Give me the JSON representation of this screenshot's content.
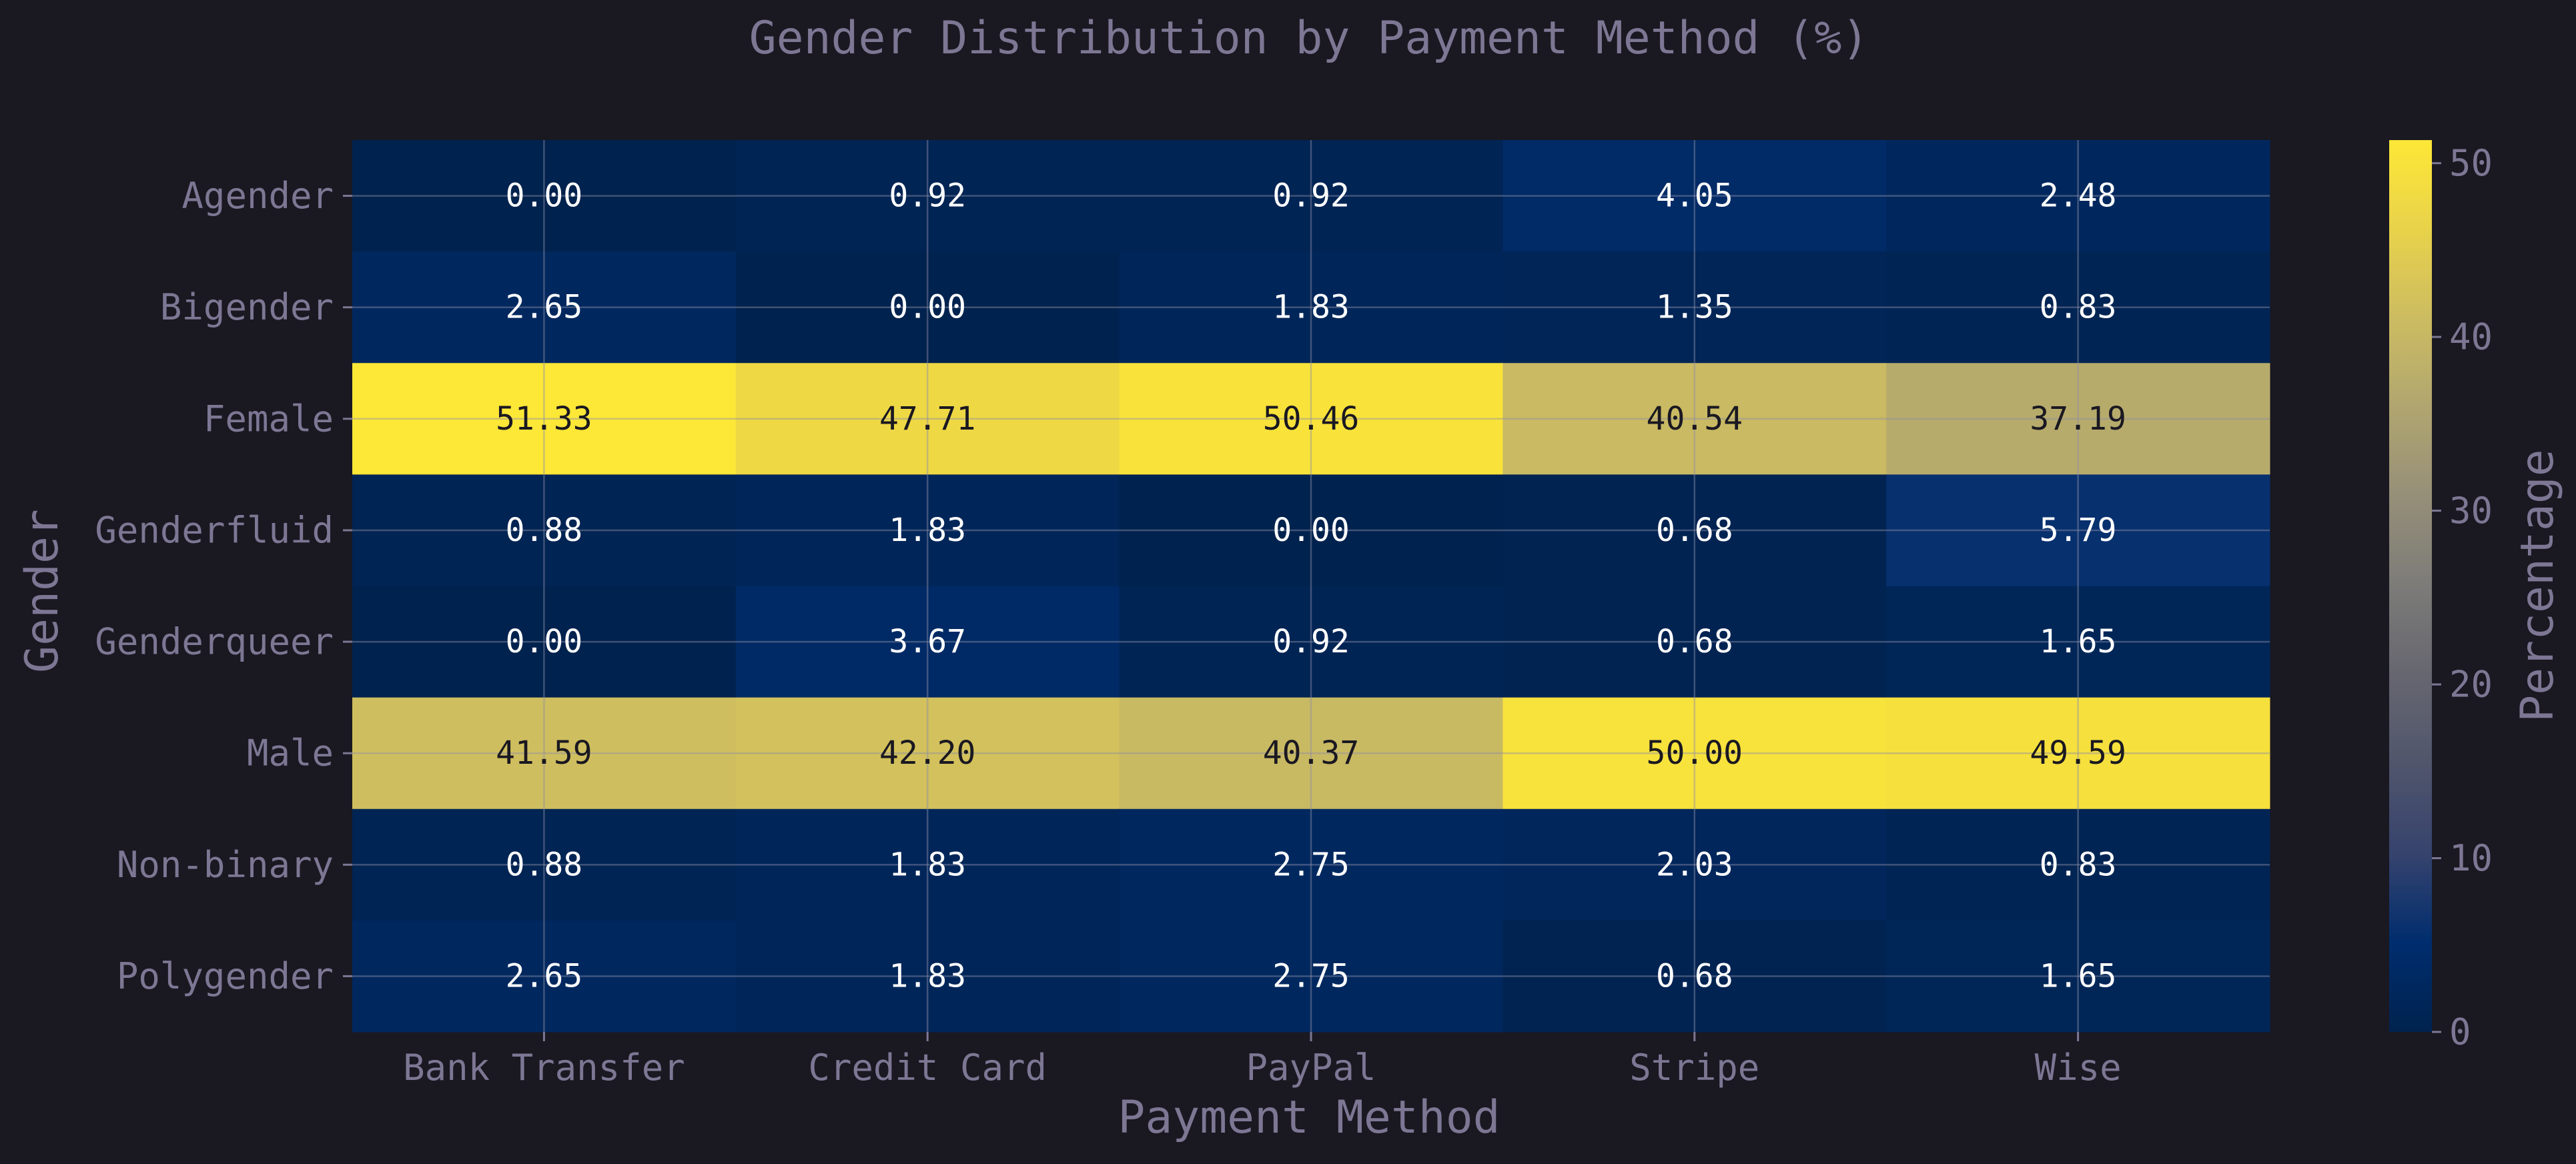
{
  "chart_data": {
    "type": "heatmap",
    "title": "Gender Distribution by Payment Method (%)",
    "xlabel": "Payment Method",
    "ylabel": "Gender",
    "x_categories": [
      "Bank Transfer",
      "Credit Card",
      "PayPal",
      "Stripe",
      "Wise"
    ],
    "y_categories": [
      "Agender",
      "Bigender",
      "Female",
      "Genderfluid",
      "Genderqueer",
      "Male",
      "Non-binary",
      "Polygender"
    ],
    "values": [
      [
        0.0,
        0.92,
        0.92,
        4.05,
        2.48
      ],
      [
        2.65,
        0.0,
        1.83,
        1.35,
        0.83
      ],
      [
        51.33,
        47.71,
        50.46,
        40.54,
        37.19
      ],
      [
        0.88,
        1.83,
        0.0,
        0.68,
        5.79
      ],
      [
        0.0,
        3.67,
        0.92,
        0.68,
        1.65
      ],
      [
        41.59,
        42.2,
        40.37,
        50.0,
        49.59
      ],
      [
        0.88,
        1.83,
        2.75,
        2.03,
        0.83
      ],
      [
        2.65,
        1.83,
        2.75,
        0.68,
        1.65
      ]
    ],
    "value_labels": [
      [
        "0.00",
        "0.92",
        "0.92",
        "4.05",
        "2.48"
      ],
      [
        "2.65",
        "0.00",
        "1.83",
        "1.35",
        "0.83"
      ],
      [
        "51.33",
        "47.71",
        "50.46",
        "40.54",
        "37.19"
      ],
      [
        "0.88",
        "1.83",
        "0.00",
        "0.68",
        "5.79"
      ],
      [
        "0.00",
        "3.67",
        "0.92",
        "0.68",
        "1.65"
      ],
      [
        "41.59",
        "42.20",
        "40.37",
        "50.00",
        "49.59"
      ],
      [
        "0.88",
        "1.83",
        "2.75",
        "2.03",
        "0.83"
      ],
      [
        "2.65",
        "1.83",
        "2.75",
        "0.68",
        "1.65"
      ]
    ],
    "colorbar": {
      "label": "Percentage",
      "range": [
        0,
        51.33
      ],
      "ticks": [
        0,
        10,
        20,
        30,
        40,
        50
      ],
      "tick_labels": [
        "0",
        "10",
        "20",
        "30",
        "40",
        "50"
      ],
      "colormap": "cividis"
    },
    "grid": true
  },
  "colors": {
    "background": "#1a1821",
    "text": "#7d7794",
    "grid": "#8f8da6"
  }
}
